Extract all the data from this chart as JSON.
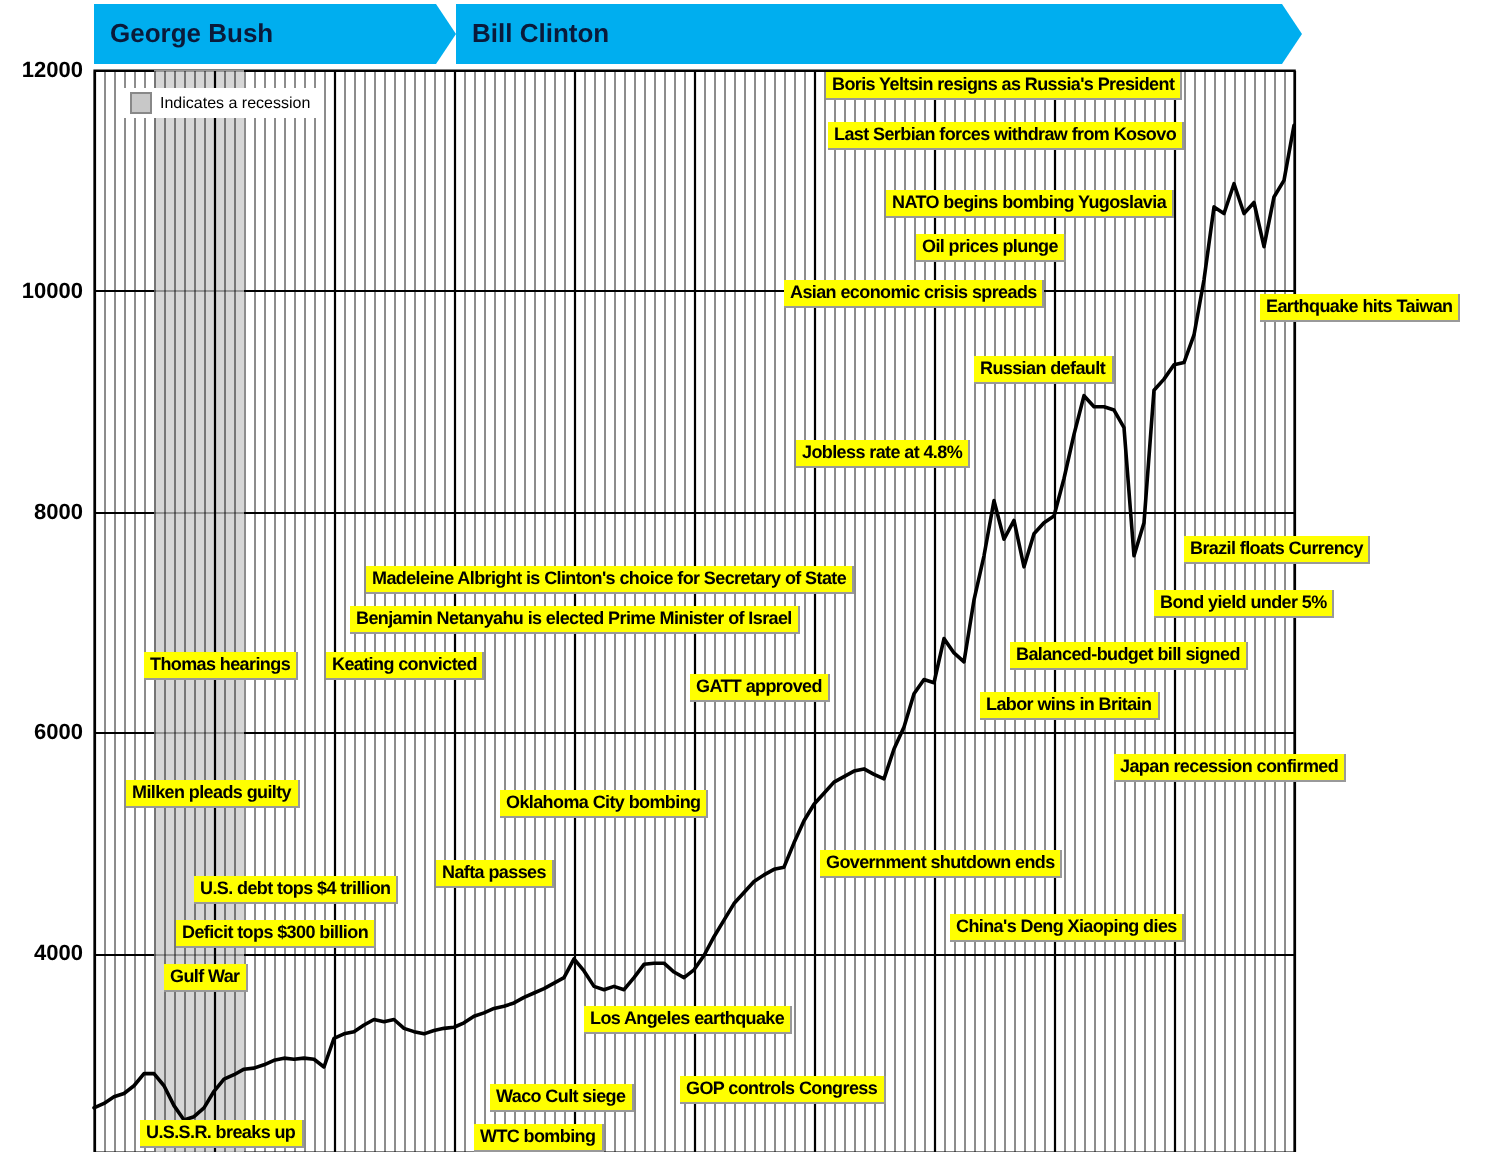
{
  "chart_data": {
    "type": "line",
    "categories": [
      null,
      null,
      null,
      null,
      null,
      null,
      null,
      null,
      null,
      null,
      null,
      null,
      null,
      null,
      null,
      null,
      null,
      null,
      null,
      null,
      null,
      null,
      null,
      null,
      null,
      null,
      null,
      null,
      null,
      null,
      null,
      null,
      null,
      null,
      null,
      null,
      null,
      null,
      null,
      null,
      null,
      null,
      null,
      null,
      null,
      null,
      null,
      null,
      null,
      null,
      null,
      null,
      null,
      null,
      null,
      null,
      null,
      null,
      null,
      null,
      null,
      null,
      null,
      null,
      null,
      null,
      null,
      null,
      null,
      null,
      null,
      null,
      null,
      null,
      null,
      null,
      null,
      null,
      null,
      null,
      null,
      null,
      null,
      null,
      null,
      null,
      null,
      null,
      null,
      null,
      null,
      null,
      null,
      null,
      null,
      null,
      null,
      null,
      null,
      null,
      null,
      null,
      null,
      null,
      null,
      null,
      null,
      null,
      null,
      null,
      null,
      null,
      null,
      null,
      null,
      null,
      null,
      null,
      null,
      null,
      null
    ],
    "values": [
      2600,
      2640,
      2700,
      2730,
      2800,
      2910,
      2910,
      2800,
      2620,
      2490,
      2520,
      2600,
      2750,
      2860,
      2900,
      2950,
      2960,
      2990,
      3030,
      3050,
      3040,
      3050,
      3040,
      2970,
      3230,
      3270,
      3290,
      3350,
      3400,
      3380,
      3400,
      3320,
      3290,
      3270,
      3300,
      3320,
      3330,
      3370,
      3430,
      3460,
      3500,
      3520,
      3550,
      3600,
      3640,
      3680,
      3730,
      3780,
      3950,
      3840,
      3700,
      3670,
      3700,
      3670,
      3780,
      3900,
      3910,
      3910,
      3830,
      3780,
      3850,
      3980,
      4150,
      4300,
      4450,
      4550,
      4650,
      4710,
      4760,
      4780,
      5000,
      5200,
      5350,
      5450,
      5550,
      5600,
      5650,
      5670,
      5620,
      5580,
      5850,
      6050,
      6350,
      6480,
      6450,
      6850,
      6720,
      6640,
      7200,
      7600,
      8100,
      7750,
      7920,
      7500,
      7800,
      7900,
      7960,
      8300,
      8700,
      9050,
      8950,
      8950,
      8920,
      8760,
      7600,
      7900,
      9100,
      9200,
      9330,
      9350,
      9600,
      10100,
      10760,
      10700,
      10970,
      10700,
      10800,
      10400,
      10850,
      11000,
      11500
    ],
    "color": "#000000",
    "ylim": [
      2200,
      12000
    ],
    "yticks": [
      4000,
      6000,
      8000,
      10000,
      12000
    ],
    "grid": true,
    "tick_labels": "y",
    "annotations": [
      "George Bush",
      "Bill Clinton",
      "Indicates a recession",
      "Boris Yeltsin resigns as Russia's President",
      "Last Serbian forces withdraw from Kosovo",
      "NATO begins bombing Yugoslavia",
      "Oil prices plunge",
      "Asian economic crisis spreads",
      "Earthquake hits Taiwan",
      "Russian default",
      "Jobless rate at 4.8%",
      "Brazil floats Currency",
      "Bond yield under 5%",
      "Madeleine Albright is Clinton's choice for Secretary of State",
      "Benjamin Netanyahu is elected Prime Minister of Israel",
      "Thomas hearings",
      "Keating convicted",
      "GATT approved",
      "Balanced-budget bill signed",
      "Labor wins in Britain",
      "Japan recession confirmed",
      "Milken pleads guilty",
      "Oklahoma City bombing",
      "Government shutdown ends",
      "Nafta passes",
      "U.S. debt tops $4 trillion",
      "Deficit tops $300 billion",
      "China's Deng Xiaoping dies",
      "Gulf War",
      "Los Angeles earthquake",
      "Waco Cult siege",
      "GOP controls Congress",
      "WTC bombing",
      "U.S.S.R. breaks up"
    ]
  }
}
